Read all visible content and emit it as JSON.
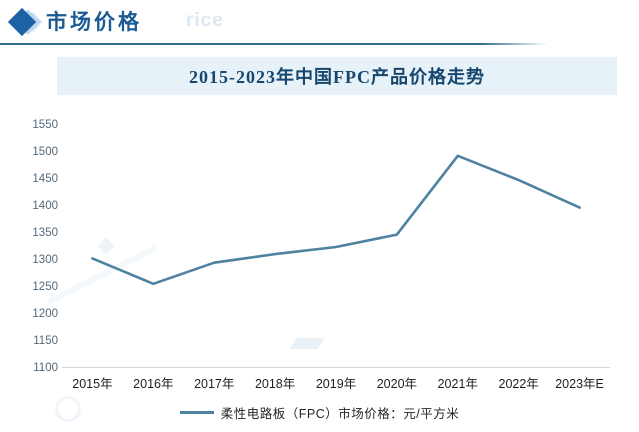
{
  "header": {
    "title": "市场价格",
    "watermark": "rice"
  },
  "chart": {
    "title": "2015-2023年中国FPC产品价格走势",
    "legend": "柔性电路板（FPC）市场价格：元/平方米"
  },
  "colors": {
    "header_text": "#1c5a96",
    "header_diamond": "#1d62a7",
    "title_band_bg": "#e7f1f8",
    "title_text": "#17466e",
    "line": "#4e82a0",
    "underline": "#33708e",
    "axis_line": "#d6d6d6",
    "y_tick_text": "#54687a",
    "x_tick_text": "#1f1f1f"
  },
  "chart_data": {
    "type": "line",
    "title": "2015-2023年中国FPC产品价格走势",
    "categories": [
      "2015年",
      "2016年",
      "2017年",
      "2018年",
      "2019年",
      "2020年",
      "2021年",
      "2022年",
      "2023年E"
    ],
    "series": [
      {
        "name": "柔性电路板（FPC）市场价格：元/平方米",
        "values": [
          1303,
          1256,
          1295,
          1311,
          1324,
          1347,
          1493,
          1448,
          1397
        ]
      }
    ],
    "xlabel": "",
    "ylabel": "",
    "ylim": [
      1100,
      1550
    ],
    "y_ticks": [
      1100,
      1150,
      1200,
      1250,
      1300,
      1350,
      1400,
      1450,
      1500,
      1550
    ],
    "grid": false,
    "legend_position": "bottom"
  }
}
